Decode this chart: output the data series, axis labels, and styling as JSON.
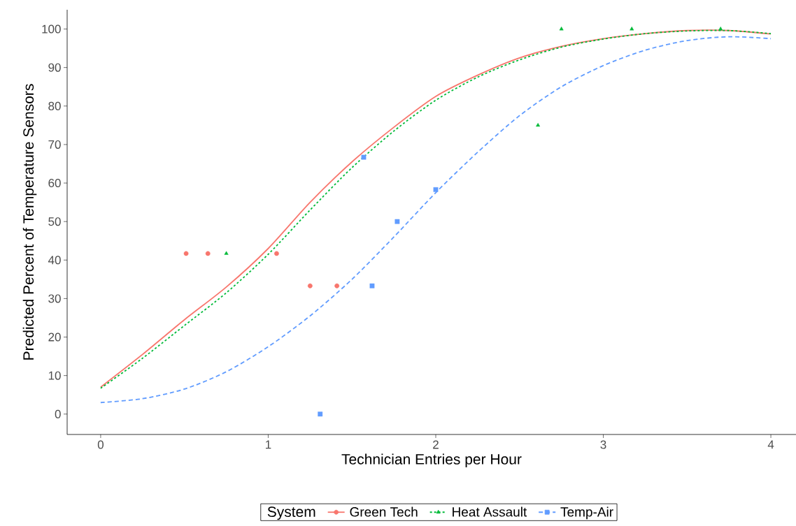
{
  "chart_data": {
    "type": "scatter",
    "xlabel": "Technician Entries per Hour",
    "ylabel": "Predicted Percent of Temperature Sensors",
    "legend_title": "System",
    "legend": "bottom",
    "grid": false,
    "xlim": [
      -0.2,
      4.15
    ],
    "ylim": [
      -5.3,
      105
    ],
    "xticks": [
      0,
      1,
      2,
      3,
      4
    ],
    "yticks": [
      0,
      10,
      20,
      30,
      40,
      50,
      60,
      70,
      80,
      90,
      100
    ],
    "series": [
      {
        "name": "Green Tech",
        "marker": "circle",
        "color": "#f8766d",
        "x": [
          0.51,
          0.64,
          1.05,
          1.25,
          1.41
        ],
        "values": [
          41.7,
          41.7,
          41.7,
          33.3,
          33.3
        ]
      },
      {
        "name": "Heat Assault",
        "marker": "triangle",
        "color": "#00ba38",
        "x": [
          0.75,
          2.61,
          2.75,
          3.17,
          3.7
        ],
        "values": [
          41.7,
          75,
          100,
          100,
          100
        ]
      },
      {
        "name": "Temp-Air",
        "marker": "square",
        "color": "#619cff",
        "x": [
          1.31,
          1.57,
          1.62,
          1.77,
          2.0
        ],
        "values": [
          0,
          66.7,
          33.3,
          50,
          58.3
        ]
      },
      {
        "type": "line",
        "marker": "none",
        "line_style": "solid",
        "color": "#f8766d",
        "x": [
          0,
          0.25,
          0.5,
          0.75,
          1,
          1.25,
          1.5,
          1.75,
          2,
          2.25,
          2.5,
          2.75,
          3,
          3.25,
          3.5,
          3.75,
          4
        ],
        "values": [
          7,
          15.5,
          24.5,
          33,
          43,
          55,
          65.5,
          74.5,
          82.5,
          88,
          92.5,
          95.5,
          97.5,
          98.8,
          99.6,
          99.6,
          98.7
        ]
      },
      {
        "type": "line",
        "marker": "none",
        "line_style": "dotted",
        "color": "#00ba38",
        "x": [
          0,
          0.25,
          0.5,
          0.75,
          1,
          1.25,
          1.5,
          1.75,
          2,
          2.25,
          2.5,
          2.75,
          3,
          3.25,
          3.5,
          3.75,
          4
        ],
        "values": [
          6.7,
          14.5,
          23,
          31.5,
          41.5,
          53,
          64,
          73.5,
          81.5,
          87.5,
          92,
          95.3,
          97.4,
          98.8,
          99.5,
          99.6,
          98.8
        ]
      },
      {
        "type": "line",
        "marker": "none",
        "line_style": "dashed",
        "color": "#619cff",
        "x": [
          0,
          0.25,
          0.5,
          0.75,
          1,
          1.25,
          1.5,
          1.75,
          2,
          2.25,
          2.5,
          2.75,
          3,
          3.25,
          3.5,
          3.75,
          4
        ],
        "values": [
          3,
          4,
          6.5,
          11,
          17.5,
          25.5,
          35,
          46,
          57.5,
          68,
          77.5,
          85,
          90.5,
          94.5,
          97,
          98,
          97.5
        ]
      }
    ]
  }
}
